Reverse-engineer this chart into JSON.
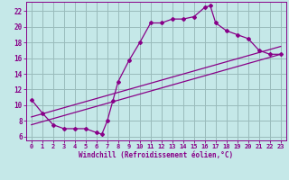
{
  "xlabel": "Windchill (Refroidissement éolien,°C)",
  "bg_color": "#c5e8e8",
  "line_color": "#880088",
  "grid_color": "#99bbbb",
  "xlim": [
    -0.5,
    23.5
  ],
  "ylim": [
    5.5,
    23.2
  ],
  "yticks": [
    6,
    8,
    10,
    12,
    14,
    16,
    18,
    20,
    22
  ],
  "xticks": [
    0,
    1,
    2,
    3,
    4,
    5,
    6,
    7,
    8,
    9,
    10,
    11,
    12,
    13,
    14,
    15,
    16,
    17,
    18,
    19,
    20,
    21,
    22,
    23
  ],
  "curve_x": [
    0,
    1,
    2,
    3,
    4,
    5,
    6,
    6.5,
    7,
    7.5,
    8,
    9,
    10,
    11,
    12,
    13,
    14,
    15,
    16,
    16.5,
    17,
    18,
    19,
    20,
    21,
    22,
    23
  ],
  "curve_y": [
    10.7,
    9.0,
    7.5,
    7.0,
    7.0,
    7.0,
    6.5,
    6.3,
    8.0,
    10.5,
    13.0,
    15.7,
    18.0,
    20.5,
    20.5,
    21.0,
    21.0,
    21.3,
    22.5,
    22.7,
    20.5,
    19.5,
    19.0,
    18.5,
    17.0,
    16.5,
    16.5
  ],
  "line1_x": [
    0,
    23
  ],
  "line1_y": [
    7.5,
    16.5
  ],
  "line2_x": [
    0,
    23
  ],
  "line2_y": [
    8.5,
    17.5
  ]
}
